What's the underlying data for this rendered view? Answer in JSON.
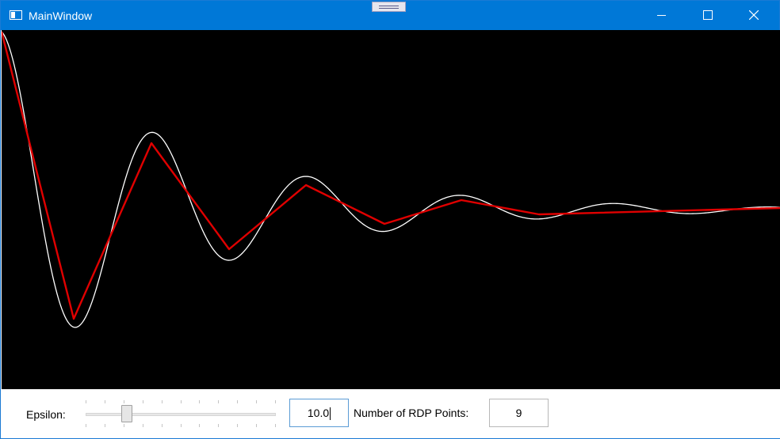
{
  "window": {
    "title": "MainWindow"
  },
  "titlebar": {
    "icons": [
      "app-icon",
      "minimize-icon",
      "maximize-icon",
      "close-icon"
    ]
  },
  "plot": {
    "background": "#000000",
    "original_curve_color": "#ffffff",
    "rdp_curve_color": "#e00000"
  },
  "controls": {
    "epsilon_label": "Epsilon:",
    "epsilon_value": "10.0",
    "slider_fraction": 0.2,
    "rdp_label": "Number of RDP Points:",
    "rdp_count": "9"
  }
}
